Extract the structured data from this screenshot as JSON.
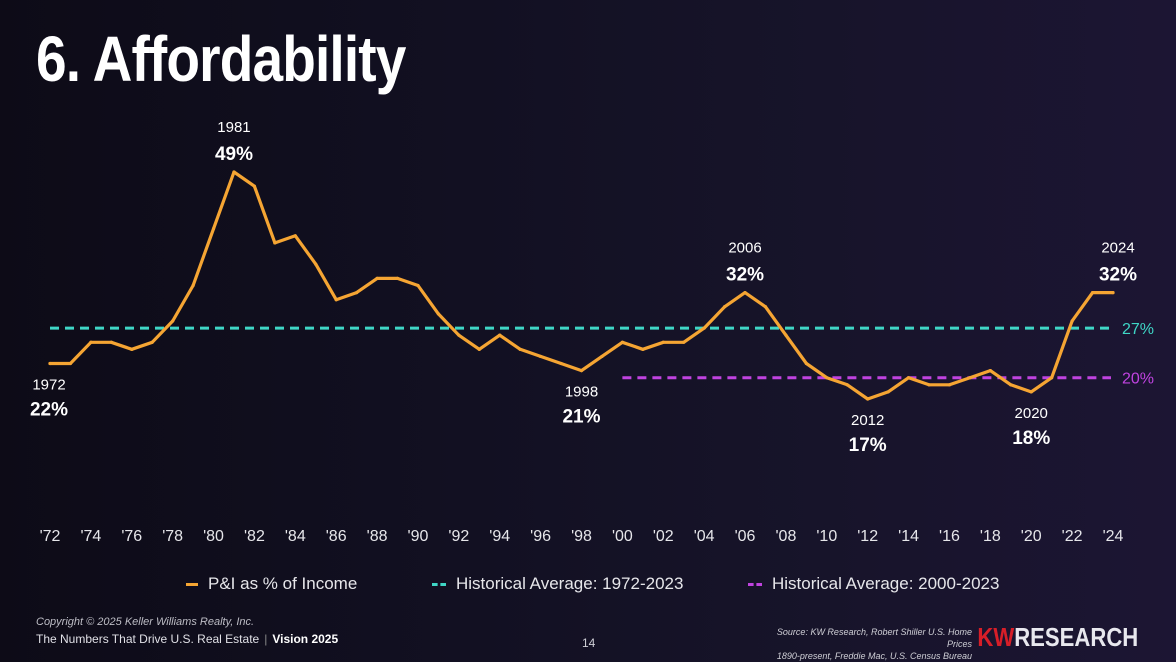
{
  "title": "6. Affordability",
  "chart_data": {
    "type": "line",
    "title": "",
    "xlabel": "",
    "ylabel": "",
    "ylim": [
      10,
      55
    ],
    "x": [
      1972,
      1973,
      1974,
      1975,
      1976,
      1977,
      1978,
      1979,
      1980,
      1981,
      1982,
      1983,
      1984,
      1985,
      1986,
      1987,
      1988,
      1989,
      1990,
      1991,
      1992,
      1993,
      1994,
      1995,
      1996,
      1997,
      1998,
      1999,
      2000,
      2001,
      2002,
      2003,
      2004,
      2005,
      2006,
      2007,
      2008,
      2009,
      2010,
      2011,
      2012,
      2013,
      2014,
      2015,
      2016,
      2017,
      2018,
      2019,
      2020,
      2021,
      2022,
      2023,
      2024
    ],
    "x_tick_labels": [
      "'72",
      "'74",
      "'76",
      "'78",
      "'80",
      "'82",
      "'84",
      "'86",
      "'88",
      "'90",
      "'92",
      "'94",
      "'96",
      "'98",
      "'00",
      "'02",
      "'04",
      "'06",
      "'08",
      "'10",
      "'12",
      "'14",
      "'16",
      "'18",
      "'20",
      "'22",
      "'24"
    ],
    "series": [
      {
        "name": "P&I as % of Income",
        "color": "#f5a533",
        "values": [
          22,
          22,
          25,
          25,
          24,
          25,
          28,
          33,
          41,
          49,
          47,
          39,
          40,
          36,
          31,
          32,
          34,
          34,
          33,
          29,
          26,
          24,
          26,
          24,
          23,
          22,
          21,
          23,
          25,
          24,
          25,
          25,
          27,
          30,
          32,
          30,
          26,
          22,
          20,
          19,
          17,
          18,
          20,
          19,
          19,
          20,
          21,
          19,
          18,
          20,
          28,
          32,
          32
        ]
      }
    ],
    "reference_lines": [
      {
        "name": "Historical Average: 1972-2023",
        "value": 27,
        "label": "27%",
        "color": "#3fd6c6",
        "x_start": 1972,
        "x_end": 2024
      },
      {
        "name": "Historical Average: 2000-2023",
        "value": 20,
        "label": "20%",
        "color": "#c043e0",
        "x_start": 2000,
        "x_end": 2024
      }
    ],
    "annotations": [
      {
        "year": 1972,
        "year_label": "1972",
        "value_label": "22%",
        "place": "below"
      },
      {
        "year": 1981,
        "year_label": "1981",
        "value_label": "49%",
        "place": "above"
      },
      {
        "year": 1998,
        "year_label": "1998",
        "value_label": "21%",
        "place": "below"
      },
      {
        "year": 2006,
        "year_label": "2006",
        "value_label": "32%",
        "place": "above"
      },
      {
        "year": 2012,
        "year_label": "2012",
        "value_label": "17%",
        "place": "below"
      },
      {
        "year": 2020,
        "year_label": "2020",
        "value_label": "18%",
        "place": "below"
      },
      {
        "year": 2024,
        "year_label": "2024",
        "value_label": "32%",
        "place": "above"
      }
    ],
    "legend": [
      {
        "label": "P&I as % of Income",
        "style": "solid",
        "color": "#f5a533"
      },
      {
        "label": "Historical Average: 1972-2023",
        "style": "dashed",
        "color": "#3fd6c6"
      },
      {
        "label": "Historical Average: 2000-2023",
        "style": "dashed",
        "color": "#c043e0"
      }
    ],
    "legend_position": "bottom"
  },
  "footer": {
    "copyright": "Copyright © 2025 Keller Williams Realty, Inc.",
    "tagline": "The Numbers That Drive U.S. Real Estate",
    "separator": "|",
    "edition": "Vision 2025",
    "page_number": "14",
    "source_line1": "Source: KW Research, Robert Shiller U.S. Home Prices",
    "source_line2": "1890-present, Freddie Mac, U.S. Census Bureau",
    "brand_kw": "KW",
    "brand_research": "RESEARCH"
  }
}
